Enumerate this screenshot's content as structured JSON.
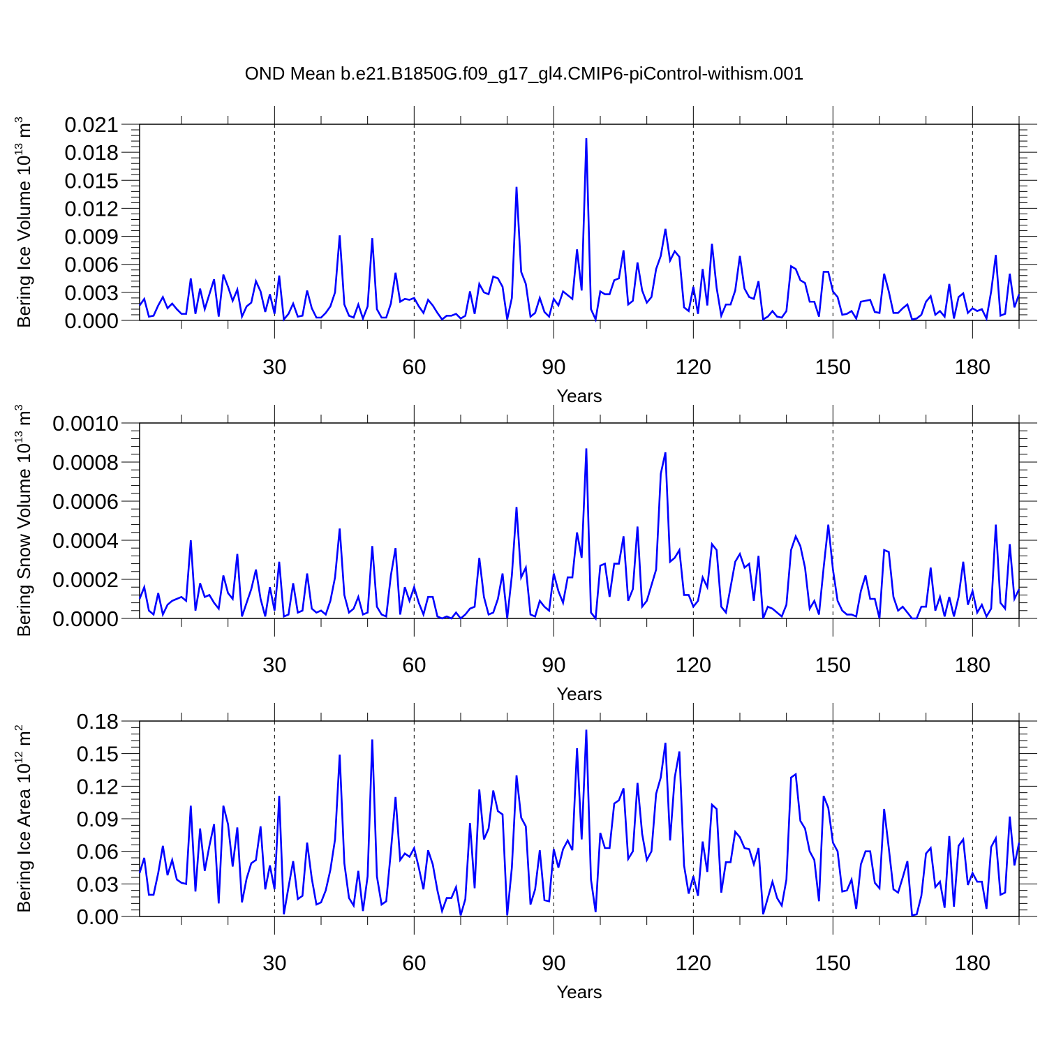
{
  "title": "OND Mean b.e21.B1850G.f09_g17_gl4.CMIP6-piControl-withism.001",
  "colors": {
    "line": "#0000ff",
    "axis": "#000000",
    "grid": "#000000",
    "background": "#ffffff"
  },
  "chart_data": [
    {
      "type": "line",
      "xlabel": "Years",
      "ylabel_base": "Bering Ice Volume 10",
      "ylabel_exp": "13",
      "ylabel_unit": " m",
      "ylabel_unit_exp": "3",
      "xlim": [
        1,
        190
      ],
      "ylim": [
        0,
        0.021
      ],
      "xticks": [
        30,
        60,
        90,
        120,
        150,
        180
      ],
      "xtick_labels": [
        "30",
        "60",
        "90",
        "120",
        "150",
        "180"
      ],
      "yticks": [
        0,
        0.003,
        0.006,
        0.009,
        0.012,
        0.015,
        0.018,
        0.021
      ],
      "ytick_labels": [
        "0.000",
        "0.003",
        "0.006",
        "0.009",
        "0.012",
        "0.015",
        "0.018",
        "0.021"
      ],
      "grid": "vertical dashed at x ticks",
      "series": [
        {
          "x_start": 1,
          "values": [
            0.0016,
            0.0023,
            0.0004,
            0.0005,
            0.0016,
            0.0025,
            0.0013,
            0.0018,
            0.0012,
            0.0007,
            0.0007,
            0.0045,
            0.0007,
            0.0034,
            0.0012,
            0.0028,
            0.0044,
            0.0004,
            0.0049,
            0.0036,
            0.0021,
            0.0033,
            0.0004,
            0.0015,
            0.0019,
            0.0042,
            0.0031,
            0.0009,
            0.0028,
            0.0007,
            0.0048,
            0.0001,
            0.0007,
            0.0018,
            0.0004,
            0.0005,
            0.0032,
            0.0013,
            0.0003,
            0.0003,
            0.0008,
            0.0015,
            0.003,
            0.0091,
            0.0017,
            0.0005,
            0.0003,
            0.0017,
            0.0002,
            0.0015,
            0.0088,
            0.0012,
            0.0003,
            0.0003,
            0.0018,
            0.0051,
            0.002,
            0.0023,
            0.0022,
            0.0024,
            0.0015,
            0.0008,
            0.0022,
            0.0016,
            0.0008,
            0.0001,
            0.0005,
            0.0005,
            0.0007,
            0.0002,
            0.0005,
            0.0031,
            0.0007,
            0.0039,
            0.003,
            0.0028,
            0.0047,
            0.0045,
            0.0036,
            0.0001,
            0.0024,
            0.0143,
            0.0052,
            0.0039,
            0.0004,
            0.0008,
            0.0024,
            0.0009,
            0.0004,
            0.0023,
            0.0016,
            0.0031,
            0.0027,
            0.0023,
            0.0076,
            0.0032,
            0.0195,
            0.0012,
            0.0001,
            0.0031,
            0.0028,
            0.0028,
            0.0043,
            0.0045,
            0.0075,
            0.0017,
            0.0021,
            0.0062,
            0.0032,
            0.0019,
            0.0025,
            0.0055,
            0.0069,
            0.0098,
            0.0064,
            0.0074,
            0.0068,
            0.0014,
            0.001,
            0.0036,
            0.0007,
            0.0055,
            0.0016,
            0.0082,
            0.0035,
            0.0005,
            0.0017,
            0.0017,
            0.0032,
            0.0069,
            0.0034,
            0.0025,
            0.0023,
            0.0042,
            0.0001,
            0.0004,
            0.001,
            0.0004,
            0.0003,
            0.001,
            0.0058,
            0.0055,
            0.0043,
            0.004,
            0.002,
            0.002,
            0.0004,
            0.0052,
            0.0052,
            0.0031,
            0.0025,
            0.0006,
            0.0007,
            0.001,
            0.0002,
            0.002,
            0.0021,
            0.0022,
            0.0009,
            0.0008,
            0.005,
            0.0031,
            0.0008,
            0.0008,
            0.0013,
            0.0017,
            0.0001,
            0.0002,
            0.0006,
            0.002,
            0.0026,
            0.0006,
            0.001,
            0.0004,
            0.0039,
            0.0002,
            0.0025,
            0.0029,
            0.0008,
            0.0013,
            0.001,
            0.0012,
            0.0002,
            0.0031,
            0.007,
            0.0005,
            0.0007,
            0.005,
            0.0014,
            0.0028
          ]
        }
      ]
    },
    {
      "type": "line",
      "xlabel": "Years",
      "ylabel_base": "Bering Snow Volume 10",
      "ylabel_exp": "13",
      "ylabel_unit": " m",
      "ylabel_unit_exp": "3",
      "xlim": [
        1,
        190
      ],
      "ylim": [
        0,
        0.001
      ],
      "xticks": [
        30,
        60,
        90,
        120,
        150,
        180
      ],
      "xtick_labels": [
        "30",
        "60",
        "90",
        "120",
        "150",
        "180"
      ],
      "yticks": [
        0,
        0.0002,
        0.0004,
        0.0006,
        0.0008,
        0.001
      ],
      "ytick_labels": [
        "0.0000",
        "0.0002",
        "0.0004",
        "0.0006",
        "0.0008",
        "0.0010"
      ],
      "grid": "vertical dashed at x ticks",
      "series": [
        {
          "x_start": 1,
          "values": [
            0.0001,
            0.00016,
            4e-05,
            2e-05,
            0.00013,
            2e-05,
            7e-05,
            9e-05,
            0.0001,
            0.00011,
            9e-05,
            0.0004,
            4e-05,
            0.00018,
            0.00011,
            0.00012,
            8e-05,
            5e-05,
            0.00022,
            0.00013,
            0.0001,
            0.00033,
            1e-05,
            8e-05,
            0.00015,
            0.00025,
            0.0001,
            1e-05,
            0.00016,
            4e-05,
            0.00029,
            1e-05,
            2e-05,
            0.00018,
            3e-05,
            4e-05,
            0.00023,
            5e-05,
            3e-05,
            4e-05,
            2e-05,
            9e-05,
            0.00021,
            0.00046,
            0.00012,
            3e-05,
            5e-05,
            0.00011,
            2e-05,
            3e-05,
            0.00037,
            6e-05,
            2e-05,
            1e-05,
            0.00022,
            0.00036,
            2e-05,
            0.00016,
            9e-05,
            0.00016,
            8e-05,
            2e-05,
            0.00011,
            0.00011,
            1e-05,
            0.0,
            1e-05,
            0.0,
            3e-05,
            0.0,
            2e-05,
            5e-05,
            6e-05,
            0.00031,
            0.00011,
            2e-05,
            3e-05,
            0.0001,
            0.00023,
            0.0,
            0.00022,
            0.00057,
            0.00021,
            0.00026,
            2e-05,
            1e-05,
            9e-05,
            6e-05,
            4e-05,
            0.00023,
            0.00014,
            8e-05,
            0.00021,
            0.00021,
            0.00044,
            0.00031,
            0.00087,
            3e-05,
            0.0,
            0.00027,
            0.00028,
            0.00011,
            0.00028,
            0.00028,
            0.00042,
            9e-05,
            0.00015,
            0.00047,
            6e-05,
            9e-05,
            0.00017,
            0.00025,
            0.00074,
            0.00085,
            0.00029,
            0.00031,
            0.00035,
            0.00012,
            0.00012,
            6e-05,
            9e-05,
            0.00021,
            0.00016,
            0.00038,
            0.00035,
            6e-05,
            3e-05,
            0.00016,
            0.00029,
            0.00033,
            0.00026,
            0.00028,
            9e-05,
            0.00032,
            0.0,
            6e-05,
            5e-05,
            3e-05,
            1e-05,
            7e-05,
            0.00035,
            0.00042,
            0.00037,
            0.00026,
            5e-05,
            9e-05,
            2e-05,
            0.00026,
            0.00048,
            0.00025,
            9e-05,
            4e-05,
            2e-05,
            2e-05,
            1e-05,
            0.00014,
            0.00022,
            0.0001,
            0.0001,
            0.0,
            0.00035,
            0.00034,
            0.00011,
            4e-05,
            6e-05,
            3e-05,
            0.0,
            0.0,
            6e-05,
            6e-05,
            0.00026,
            4e-05,
            0.00011,
            1e-05,
            0.00011,
            1e-05,
            0.00011,
            0.00029,
            7e-05,
            0.00014,
            3e-05,
            7e-05,
            1e-05,
            5e-05,
            0.00048,
            8e-05,
            5e-05,
            0.00038,
            0.0001,
            0.00015
          ]
        }
      ]
    },
    {
      "type": "line",
      "xlabel": "Years",
      "ylabel_base": "Bering Ice Area 10",
      "ylabel_exp": "12",
      "ylabel_unit": " m",
      "ylabel_unit_exp": "2",
      "xlim": [
        1,
        190
      ],
      "ylim": [
        0,
        0.18
      ],
      "xticks": [
        30,
        60,
        90,
        120,
        150,
        180
      ],
      "xtick_labels": [
        "30",
        "60",
        "90",
        "120",
        "150",
        "180"
      ],
      "yticks": [
        0,
        0.03,
        0.06,
        0.09,
        0.12,
        0.15,
        0.18
      ],
      "ytick_labels": [
        "0.00",
        "0.03",
        "0.06",
        "0.09",
        "0.12",
        "0.15",
        "0.18"
      ],
      "grid": "vertical dashed at x ticks",
      "series": [
        {
          "x_start": 1,
          "values": [
            0.04,
            0.054,
            0.02,
            0.02,
            0.04,
            0.065,
            0.038,
            0.052,
            0.034,
            0.031,
            0.03,
            0.102,
            0.023,
            0.081,
            0.042,
            0.065,
            0.085,
            0.012,
            0.102,
            0.085,
            0.046,
            0.082,
            0.013,
            0.035,
            0.049,
            0.052,
            0.083,
            0.025,
            0.047,
            0.025,
            0.111,
            0.002,
            0.027,
            0.051,
            0.016,
            0.019,
            0.068,
            0.035,
            0.011,
            0.013,
            0.024,
            0.043,
            0.071,
            0.149,
            0.049,
            0.017,
            0.01,
            0.042,
            0.005,
            0.037,
            0.163,
            0.037,
            0.011,
            0.014,
            0.06,
            0.11,
            0.052,
            0.058,
            0.055,
            0.063,
            0.045,
            0.025,
            0.061,
            0.048,
            0.024,
            0.005,
            0.017,
            0.017,
            0.027,
            0.001,
            0.016,
            0.086,
            0.026,
            0.117,
            0.071,
            0.081,
            0.116,
            0.097,
            0.094,
            0.001,
            0.045,
            0.13,
            0.091,
            0.083,
            0.011,
            0.025,
            0.061,
            0.015,
            0.014,
            0.062,
            0.045,
            0.062,
            0.07,
            0.061,
            0.155,
            0.071,
            0.172,
            0.034,
            0.004,
            0.077,
            0.063,
            0.063,
            0.104,
            0.107,
            0.118,
            0.053,
            0.06,
            0.123,
            0.076,
            0.052,
            0.06,
            0.113,
            0.128,
            0.16,
            0.07,
            0.128,
            0.152,
            0.047,
            0.021,
            0.037,
            0.019,
            0.069,
            0.041,
            0.103,
            0.099,
            0.022,
            0.05,
            0.05,
            0.078,
            0.073,
            0.063,
            0.062,
            0.048,
            0.063,
            0.002,
            0.017,
            0.032,
            0.017,
            0.01,
            0.034,
            0.128,
            0.131,
            0.088,
            0.081,
            0.06,
            0.052,
            0.014,
            0.111,
            0.1,
            0.068,
            0.06,
            0.023,
            0.024,
            0.034,
            0.007,
            0.048,
            0.06,
            0.06,
            0.031,
            0.026,
            0.099,
            0.063,
            0.025,
            0.022,
            0.036,
            0.051,
            0.001,
            0.002,
            0.019,
            0.058,
            0.063,
            0.027,
            0.032,
            0.008,
            0.074,
            0.009,
            0.065,
            0.071,
            0.029,
            0.04,
            0.032,
            0.032,
            0.007,
            0.064,
            0.072,
            0.02,
            0.022,
            0.092,
            0.047,
            0.068
          ]
        }
      ]
    }
  ]
}
